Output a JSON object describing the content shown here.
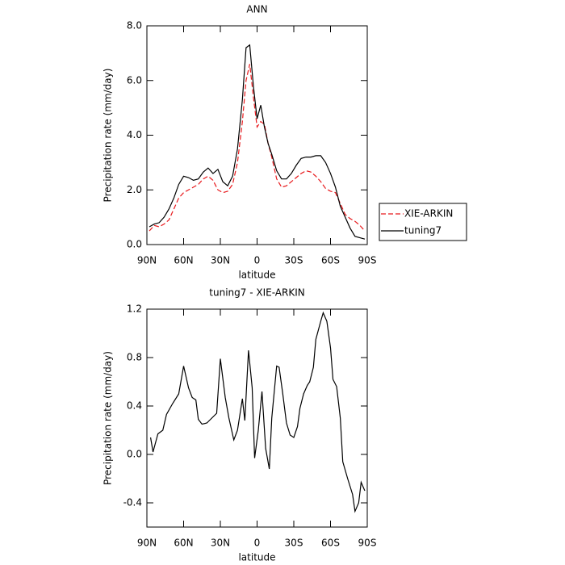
{
  "chart_data": [
    {
      "type": "line",
      "title": "ANN",
      "xlabel": "latitude",
      "ylabel": "Precipitation rate (mm/day)",
      "x": [
        88,
        84,
        80,
        76,
        72,
        68,
        64,
        60,
        56,
        52,
        48,
        44,
        40,
        36,
        32,
        28,
        24,
        20,
        16,
        12,
        9,
        6,
        3,
        0,
        -3,
        -6,
        -9,
        -12,
        -16,
        -20,
        -24,
        -28,
        -32,
        -36,
        -40,
        -44,
        -48,
        -52,
        -56,
        -60,
        -64,
        -68,
        -72,
        -76,
        -80,
        -84,
        -88
      ],
      "series": [
        {
          "name": "XIE-ARKIN",
          "color": "#e8191c",
          "style": "dashed",
          "values": [
            0.5,
            0.7,
            0.65,
            0.75,
            0.9,
            1.3,
            1.7,
            1.9,
            2.0,
            2.1,
            2.2,
            2.4,
            2.5,
            2.35,
            2.0,
            1.9,
            1.95,
            2.2,
            3.0,
            4.5,
            6.0,
            6.6,
            5.4,
            4.3,
            4.5,
            4.4,
            3.7,
            3.2,
            2.4,
            2.1,
            2.15,
            2.3,
            2.45,
            2.6,
            2.7,
            2.65,
            2.5,
            2.3,
            2.05,
            1.95,
            1.9,
            1.5,
            1.1,
            0.95,
            0.85,
            0.7,
            0.5
          ]
        },
        {
          "name": "tuning7",
          "color": "#000000",
          "style": "solid",
          "values": [
            0.65,
            0.75,
            0.8,
            1.0,
            1.3,
            1.7,
            2.2,
            2.5,
            2.45,
            2.35,
            2.4,
            2.65,
            2.8,
            2.6,
            2.75,
            2.3,
            2.15,
            2.5,
            3.5,
            5.3,
            7.2,
            7.3,
            5.8,
            4.6,
            5.1,
            4.3,
            3.7,
            3.3,
            2.7,
            2.4,
            2.4,
            2.6,
            2.9,
            3.15,
            3.2,
            3.2,
            3.25,
            3.25,
            3.0,
            2.6,
            2.1,
            1.4,
            1.0,
            0.6,
            0.3,
            0.25,
            0.2
          ]
        }
      ],
      "xlim": [
        90,
        -90
      ],
      "xticks": [
        {
          "value": 90,
          "label": "90N"
        },
        {
          "value": 60,
          "label": "60N"
        },
        {
          "value": 30,
          "label": "30N"
        },
        0,
        {
          "value": -30,
          "label": "30S"
        },
        {
          "value": -60,
          "label": "60S"
        },
        {
          "value": -90,
          "label": "90S"
        }
      ],
      "ylim": [
        0,
        8
      ],
      "yticks": [
        {
          "value": 0,
          "label": "0.0"
        },
        {
          "value": 2,
          "label": "2.0"
        },
        {
          "value": 4,
          "label": "4.0"
        },
        {
          "value": 6,
          "label": "6.0"
        },
        {
          "value": 8,
          "label": "8.0"
        }
      ],
      "legend": "right"
    },
    {
      "type": "line",
      "title": "tuning7 - XIE-ARKIN",
      "xlabel": "latitude",
      "ylabel": "Precipitation rate (mm/day)",
      "x": [
        87,
        85,
        81,
        77,
        74,
        69,
        64,
        60,
        56,
        53,
        50,
        48,
        45,
        41,
        37,
        33,
        30,
        26,
        23,
        19,
        16,
        12,
        10,
        7,
        4,
        2,
        -1,
        -4,
        -7,
        -10,
        -12,
        -16,
        -18,
        -21,
        -24,
        -27,
        -30,
        -33,
        -35,
        -38,
        -41,
        -43,
        -46,
        -48,
        -52,
        -54,
        -57,
        -60,
        -62,
        -65,
        -68,
        -70,
        -74,
        -78,
        -80,
        -83,
        -85,
        -88
      ],
      "series": [
        {
          "color": "#000000",
          "style": "solid",
          "values": [
            0.14,
            0.02,
            0.17,
            0.2,
            0.33,
            0.42,
            0.5,
            0.73,
            0.55,
            0.47,
            0.45,
            0.29,
            0.25,
            0.26,
            0.3,
            0.34,
            0.79,
            0.47,
            0.3,
            0.12,
            0.2,
            0.46,
            0.28,
            0.86,
            0.55,
            -0.03,
            0.2,
            0.52,
            0.05,
            -0.12,
            0.3,
            0.73,
            0.72,
            0.5,
            0.26,
            0.16,
            0.14,
            0.23,
            0.38,
            0.5,
            0.57,
            0.6,
            0.72,
            0.95,
            1.1,
            1.17,
            1.1,
            0.88,
            0.62,
            0.56,
            0.3,
            -0.06,
            -0.2,
            -0.33,
            -0.47,
            -0.4,
            -0.23,
            -0.3
          ]
        }
      ],
      "xlim": [
        90,
        -90
      ],
      "xticks": [
        {
          "value": 90,
          "label": "90N"
        },
        {
          "value": 60,
          "label": "60N"
        },
        {
          "value": 30,
          "label": "30N"
        },
        0,
        {
          "value": -30,
          "label": "30S"
        },
        {
          "value": -60,
          "label": "60S"
        },
        {
          "value": -90,
          "label": "90S"
        }
      ],
      "ylim": [
        -0.6,
        1.2
      ],
      "yticks": [
        {
          "value": -0.4,
          "label": "-0.4"
        },
        {
          "value": 0,
          "label": "0.0"
        },
        {
          "value": 0.4,
          "label": "0.4"
        },
        {
          "value": 0.8,
          "label": "0.8"
        },
        {
          "value": 1.2,
          "label": "1.2"
        }
      ]
    }
  ]
}
